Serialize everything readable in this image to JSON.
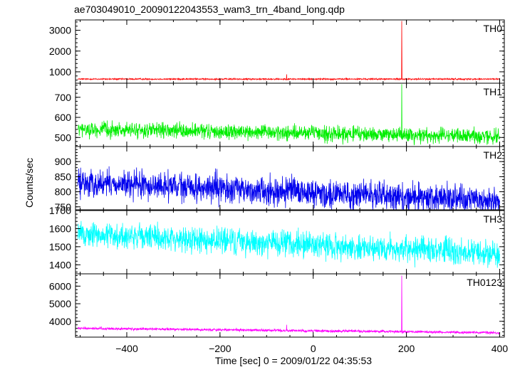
{
  "chart_data": {
    "type": "line",
    "title": "ae703049010_20090122043553_wam3_trn_4band_long.qdp",
    "xlabel": "Time [sec] 0 = 2009/01/22 04:35:53",
    "ylabel": "Counts/sec",
    "xlim": [
      -510,
      410
    ],
    "x_ticks": [
      -400,
      -200,
      0,
      200,
      400
    ],
    "x_tick_labels": [
      "−400",
      "−200",
      "0",
      "200",
      "400"
    ],
    "series": [
      {
        "name": "TH0",
        "color": "#ff0000",
        "ylim": [
          450,
          3500
        ],
        "y_ticks": [
          1000,
          2000,
          3000
        ],
        "y_tick_labels": [
          "1000",
          "2000",
          "3000"
        ],
        "baseline": 650,
        "noise": 25,
        "trend": 0,
        "spikes": [
          {
            "x": -57,
            "y": 880
          },
          {
            "x": 190,
            "y": 3450
          }
        ]
      },
      {
        "name": "TH1",
        "color": "#00ee00",
        "ylim": [
          455,
          770
        ],
        "y_ticks": [
          500,
          600,
          700
        ],
        "y_tick_labels": [
          "500",
          "600",
          "700"
        ],
        "baseline": 540,
        "noise": 28,
        "trend": -35,
        "spikes": [
          {
            "x": 190,
            "y": 765
          }
        ]
      },
      {
        "name": "TH2",
        "color": "#0000ee",
        "ylim": [
          740,
          950
        ],
        "y_ticks": [
          750,
          800,
          850,
          900
        ],
        "y_tick_labels": [
          "750",
          "800",
          "850",
          "900"
        ],
        "baseline": 830,
        "noise": 35,
        "trend": -60,
        "spikes": []
      },
      {
        "name": "TH3",
        "color": "#00ffff",
        "ylim": [
          1350,
          1700
        ],
        "y_ticks": [
          1400,
          1500,
          1600,
          1700
        ],
        "y_tick_labels": [
          "1400",
          "1500",
          "1600",
          "1700"
        ],
        "baseline": 1570,
        "noise": 55,
        "trend": -110,
        "spikes": []
      },
      {
        "name": "TH0123",
        "color": "#ff00ff",
        "ylim": [
          3100,
          6700
        ],
        "y_ticks": [
          4000,
          5000,
          6000
        ],
        "y_tick_labels": [
          "4000",
          "5000",
          "6000"
        ],
        "baseline": 3600,
        "noise": 55,
        "trend": -250,
        "spikes": [
          {
            "x": -57,
            "y": 3800
          },
          {
            "x": 190,
            "y": 6600
          }
        ]
      }
    ],
    "grid": false,
    "legend": "panel labels at top-right of each panel"
  }
}
